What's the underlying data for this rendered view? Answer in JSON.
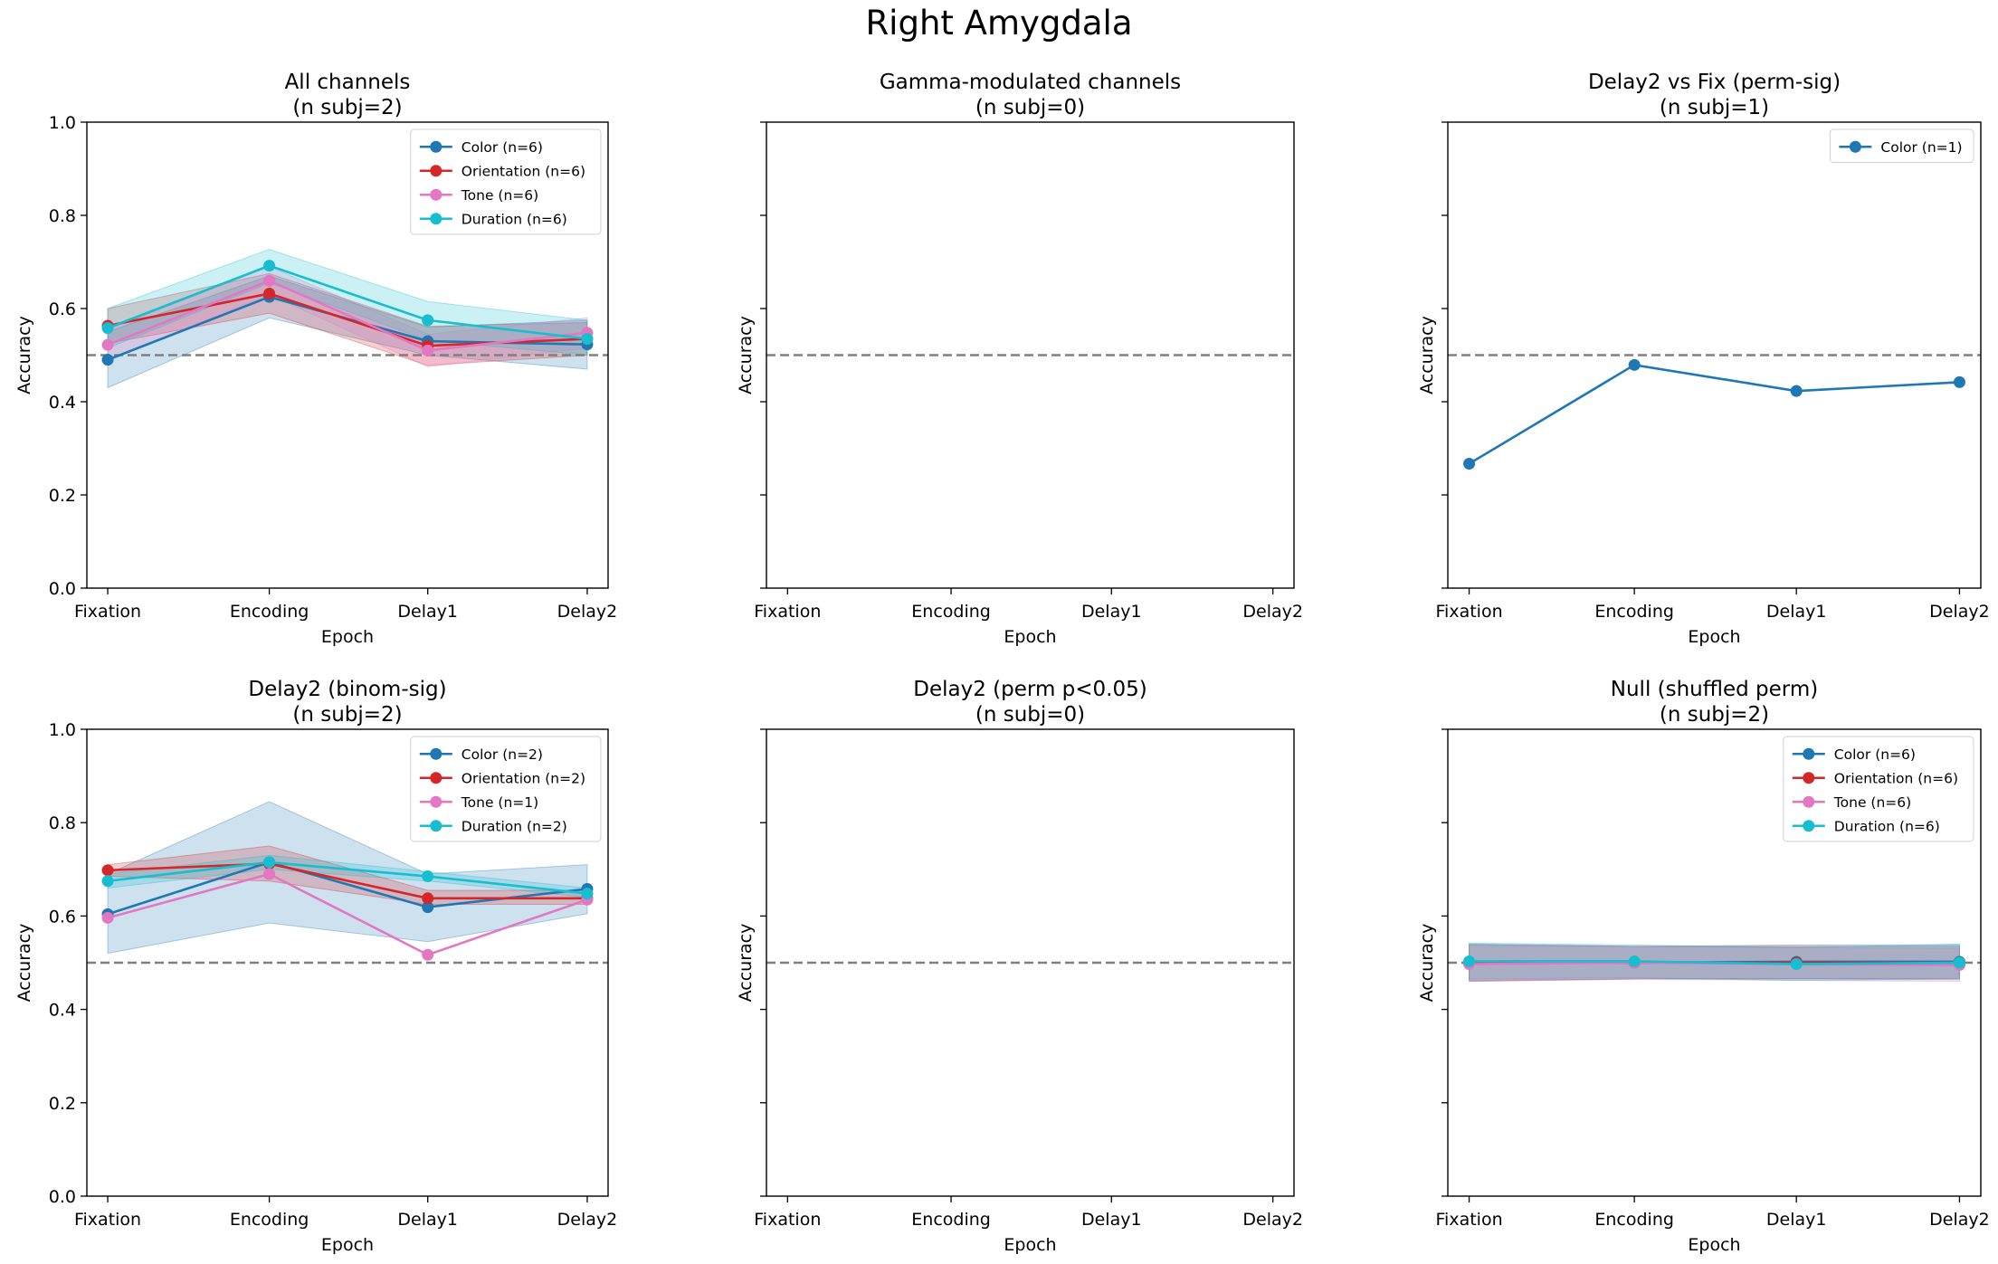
{
  "figure": {
    "suptitle": "Right Amygdala"
  },
  "colors": {
    "Color": "#1f77b4",
    "Orientation": "#d62728",
    "Tone": "#e377c2",
    "Duration": "#17becf",
    "chance": "#808080"
  },
  "chart_data": [
    {
      "type": "line",
      "title": "All channels",
      "subtitle": "(n subj=2)",
      "xlabel": "Epoch",
      "ylabel": "Accuracy",
      "categories": [
        "Fixation",
        "Encoding",
        "Delay1",
        "Delay2"
      ],
      "ylim": [
        0,
        1
      ],
      "yticks": [
        "0.0",
        "0.2",
        "0.4",
        "0.6",
        "0.8",
        "1.0"
      ],
      "show_yticklabels": true,
      "chance_level": 0.5,
      "legend": "top-right",
      "series": [
        {
          "name": "Color (n=6)",
          "key": "Color",
          "values": [
            0.49,
            0.625,
            0.53,
            0.523
          ],
          "lower": [
            0.43,
            0.58,
            0.5,
            0.47
          ],
          "upper": [
            0.55,
            0.67,
            0.56,
            0.575
          ]
        },
        {
          "name": "Orientation (n=6)",
          "key": "Orientation",
          "values": [
            0.563,
            0.632,
            0.52,
            0.535
          ],
          "lower": [
            0.525,
            0.59,
            0.478,
            0.5
          ],
          "upper": [
            0.6,
            0.675,
            0.562,
            0.57
          ]
        },
        {
          "name": "Tone (n=6)",
          "key": "Tone",
          "values": [
            0.522,
            0.66,
            0.51,
            0.548
          ],
          "lower": [
            0.49,
            0.63,
            0.475,
            0.515
          ],
          "upper": [
            0.555,
            0.69,
            0.545,
            0.58
          ]
        },
        {
          "name": "Duration (n=6)",
          "key": "Duration",
          "values": [
            0.558,
            0.692,
            0.575,
            0.535
          ],
          "lower": [
            0.515,
            0.655,
            0.532,
            0.5
          ],
          "upper": [
            0.6,
            0.727,
            0.615,
            0.575
          ]
        }
      ]
    },
    {
      "type": "line",
      "title": "Gamma-modulated channels",
      "subtitle": "(n subj=0)",
      "xlabel": "Epoch",
      "ylabel": "Accuracy",
      "categories": [
        "Fixation",
        "Encoding",
        "Delay1",
        "Delay2"
      ],
      "ylim": [
        0,
        1
      ],
      "yticks": [
        "0.0",
        "0.2",
        "0.4",
        "0.6",
        "0.8",
        "1.0"
      ],
      "show_yticklabels": false,
      "chance_level": 0.5,
      "legend": "none",
      "series": []
    },
    {
      "type": "line",
      "title": "Delay2 vs Fix (perm-sig)",
      "subtitle": "(n subj=1)",
      "xlabel": "Epoch",
      "ylabel": "Accuracy",
      "categories": [
        "Fixation",
        "Encoding",
        "Delay1",
        "Delay2"
      ],
      "ylim": [
        0,
        1
      ],
      "yticks": [
        "0.0",
        "0.2",
        "0.4",
        "0.6",
        "0.8",
        "1.0"
      ],
      "show_yticklabels": false,
      "chance_level": 0.5,
      "legend": "top-right",
      "series": [
        {
          "name": "Color (n=1)",
          "key": "Color",
          "values": [
            0.267,
            0.479,
            0.423,
            0.442
          ]
        }
      ]
    },
    {
      "type": "line",
      "title": "Delay2 (binom-sig)",
      "subtitle": "(n subj=2)",
      "xlabel": "Epoch",
      "ylabel": "Accuracy",
      "categories": [
        "Fixation",
        "Encoding",
        "Delay1",
        "Delay2"
      ],
      "ylim": [
        0,
        1
      ],
      "yticks": [
        "0.0",
        "0.2",
        "0.4",
        "0.6",
        "0.8",
        "1.0"
      ],
      "show_yticklabels": true,
      "chance_level": 0.5,
      "legend": "top-right",
      "series": [
        {
          "name": "Color (n=2)",
          "key": "Color",
          "values": [
            0.604,
            0.715,
            0.619,
            0.658
          ],
          "lower": [
            0.52,
            0.585,
            0.545,
            0.605
          ],
          "upper": [
            0.69,
            0.845,
            0.69,
            0.71
          ]
        },
        {
          "name": "Orientation (n=2)",
          "key": "Orientation",
          "values": [
            0.698,
            0.712,
            0.638,
            0.638
          ],
          "lower": [
            0.685,
            0.675,
            0.625,
            0.625
          ],
          "upper": [
            0.71,
            0.75,
            0.655,
            0.655
          ]
        },
        {
          "name": "Tone (n=1)",
          "key": "Tone",
          "values": [
            0.596,
            0.69,
            0.517,
            0.635
          ]
        },
        {
          "name": "Duration (n=2)",
          "key": "Duration",
          "values": [
            0.675,
            0.715,
            0.685,
            0.648
          ],
          "lower": [
            0.66,
            0.7,
            0.675,
            0.64
          ],
          "upper": [
            0.69,
            0.73,
            0.695,
            0.66
          ]
        }
      ]
    },
    {
      "type": "line",
      "title": "Delay2 (perm p<0.05)",
      "subtitle": "(n subj=0)",
      "xlabel": "Epoch",
      "ylabel": "Accuracy",
      "categories": [
        "Fixation",
        "Encoding",
        "Delay1",
        "Delay2"
      ],
      "ylim": [
        0,
        1
      ],
      "yticks": [
        "0.0",
        "0.2",
        "0.4",
        "0.6",
        "0.8",
        "1.0"
      ],
      "show_yticklabels": false,
      "chance_level": 0.5,
      "legend": "none",
      "series": []
    },
    {
      "type": "line",
      "title": "Null (shuffled perm)",
      "subtitle": "(n subj=2)",
      "xlabel": "Epoch",
      "ylabel": "Accuracy",
      "categories": [
        "Fixation",
        "Encoding",
        "Delay1",
        "Delay2"
      ],
      "ylim": [
        0,
        1
      ],
      "yticks": [
        "0.0",
        "0.2",
        "0.4",
        "0.6",
        "0.8",
        "1.0"
      ],
      "show_yticklabels": false,
      "chance_level": 0.5,
      "legend": "top-right",
      "series": [
        {
          "name": "Color (n=6)",
          "key": "Color",
          "values": [
            0.5,
            0.5,
            0.502,
            0.502
          ],
          "lower": [
            0.46,
            0.465,
            0.466,
            0.465
          ],
          "upper": [
            0.54,
            0.535,
            0.538,
            0.538
          ]
        },
        {
          "name": "Orientation (n=6)",
          "key": "Orientation",
          "values": [
            0.5,
            0.5,
            0.5,
            0.5
          ],
          "lower": [
            0.462,
            0.465,
            0.465,
            0.465
          ],
          "upper": [
            0.538,
            0.535,
            0.535,
            0.535
          ]
        },
        {
          "name": "Tone (n=6)",
          "key": "Tone",
          "values": [
            0.497,
            0.5,
            0.497,
            0.495
          ],
          "lower": [
            0.46,
            0.465,
            0.462,
            0.46
          ],
          "upper": [
            0.535,
            0.535,
            0.532,
            0.53
          ]
        },
        {
          "name": "Duration (n=6)",
          "key": "Duration",
          "values": [
            0.503,
            0.503,
            0.497,
            0.5
          ],
          "lower": [
            0.465,
            0.468,
            0.462,
            0.465
          ],
          "upper": [
            0.542,
            0.538,
            0.532,
            0.54
          ]
        }
      ]
    }
  ]
}
